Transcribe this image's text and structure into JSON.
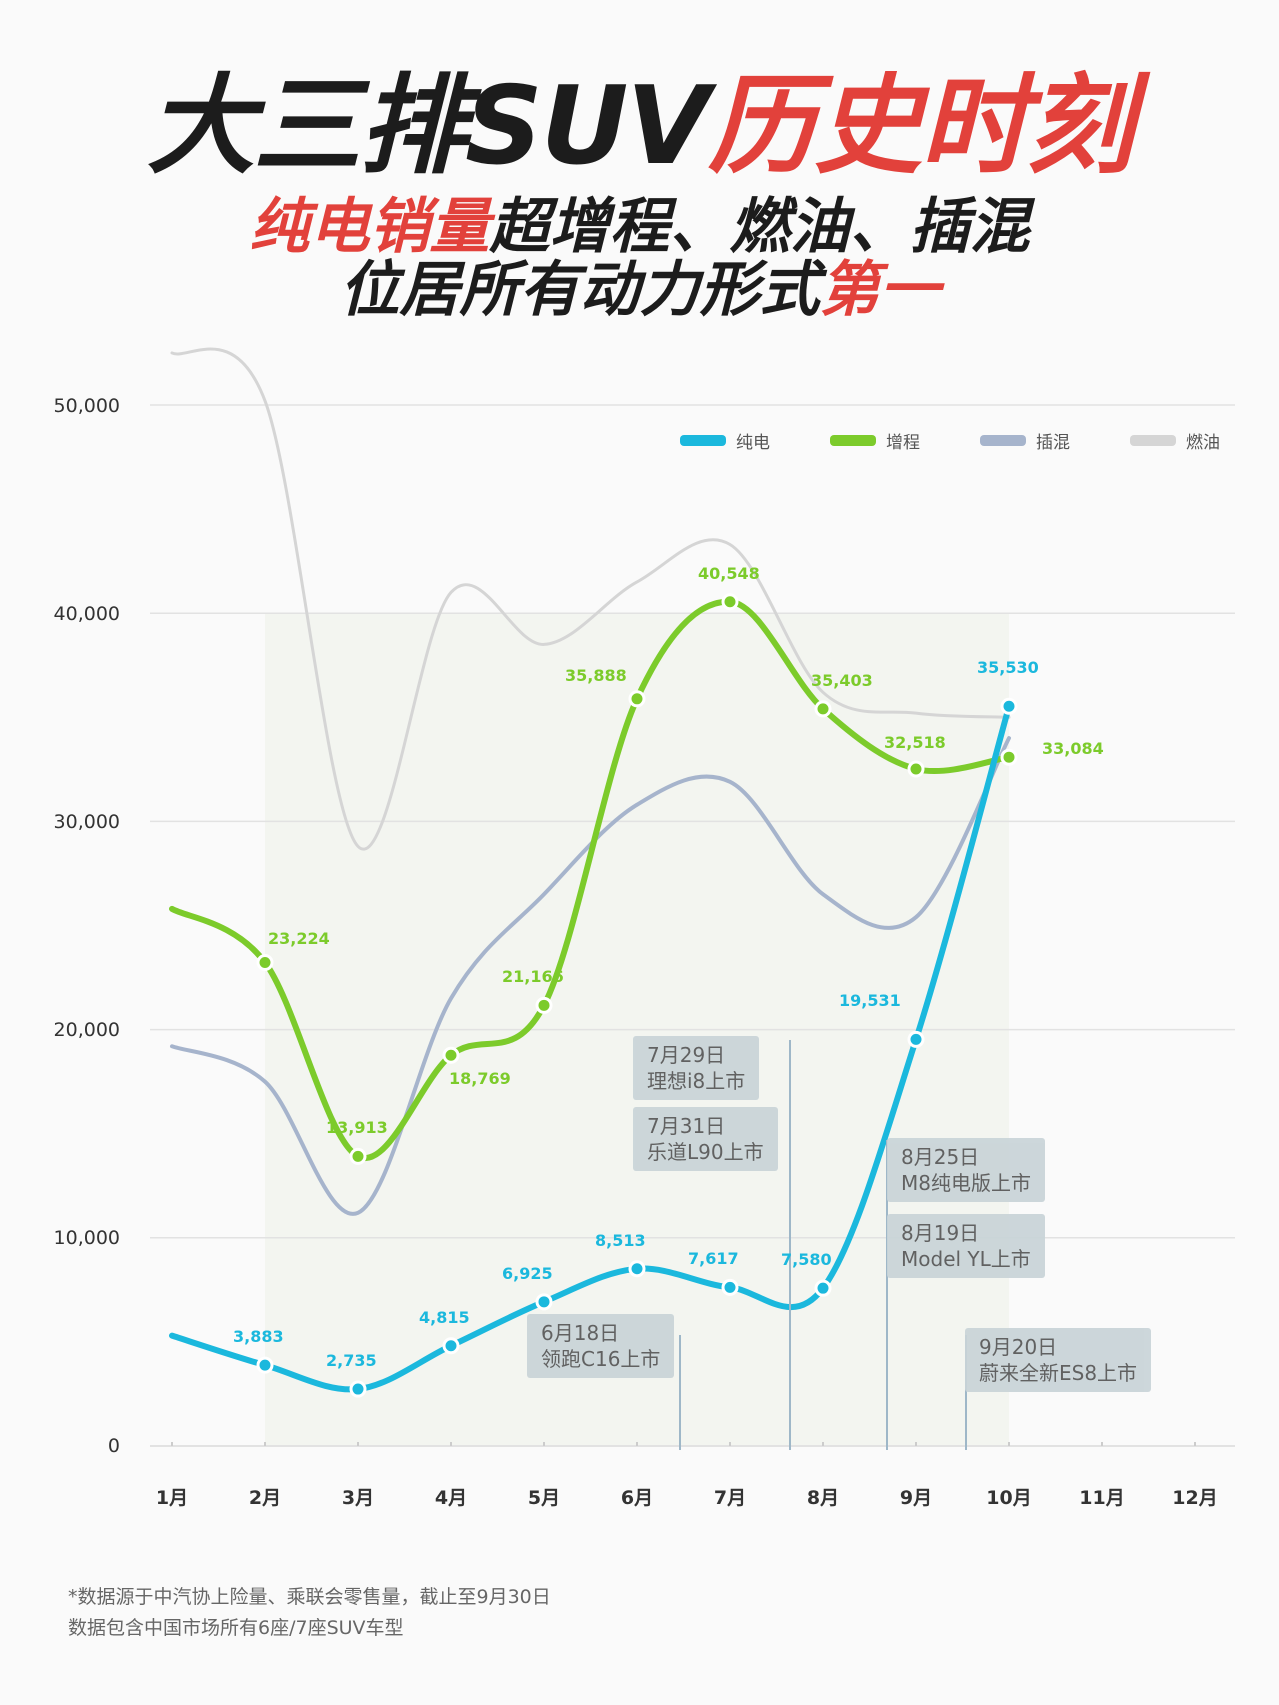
{
  "title": {
    "line1_black": "大三排SUV",
    "line1_red": "历史时刻",
    "line2_red": "纯电销量",
    "line2_black": "超增程、燃油、插混",
    "line3_black": "位居所有动力形式",
    "line3_red": "第一"
  },
  "legend": [
    {
      "label": "纯电",
      "color": "#1bb8dd"
    },
    {
      "label": "增程",
      "color": "#7ccb2b"
    },
    {
      "label": "插混",
      "color": "#a6b4cc"
    },
    {
      "label": "燃油",
      "color": "#d5d5d5"
    }
  ],
  "annotations": [
    {
      "date": "6月18日",
      "text": "领跑C16上市"
    },
    {
      "date": "7月29日",
      "text": "理想i8上市"
    },
    {
      "date": "7月31日",
      "text": "乐道L90上市"
    },
    {
      "date": "8月25日",
      "text": "M8纯电版上市"
    },
    {
      "date": "8月19日",
      "text": "Model YL上市"
    },
    {
      "date": "9月20日",
      "text": "蔚来全新ES8上市"
    }
  ],
  "footnote": {
    "line1": "*数据源于中汽协上险量、乘联会零售量，截止至9月30日",
    "line2": "数据包含中国市场所有6座/7座SUV车型"
  },
  "chart_data": {
    "type": "line",
    "title": "大三排SUV历史时刻",
    "subtitle": "纯电销量超增程、燃油、插混 位居所有动力形式第一",
    "xlabel": "",
    "ylabel": "",
    "categories": [
      "1月",
      "2月",
      "3月",
      "4月",
      "5月",
      "6月",
      "7月",
      "8月",
      "9月",
      "10月",
      "11月",
      "12月"
    ],
    "yticks": [
      "0",
      "10,000",
      "20,000",
      "30,000",
      "40,000",
      "50,000"
    ],
    "ylim": [
      0,
      50000
    ],
    "grid": true,
    "legend_position": "top-right",
    "series": [
      {
        "name": "纯电",
        "color": "#1bb8dd",
        "values": [
          5300,
          3883,
          2735,
          4815,
          6925,
          8513,
          7617,
          7580,
          19531,
          35530,
          null,
          null
        ],
        "labels": [
          "",
          "3,883",
          "2,735",
          "4,815",
          "6,925",
          "8,513",
          "7,617",
          "7,580",
          "19,531",
          "35,530",
          "",
          ""
        ]
      },
      {
        "name": "增程",
        "color": "#7ccb2b",
        "values": [
          25800,
          23224,
          13913,
          18769,
          21166,
          35888,
          40548,
          35403,
          32518,
          33084,
          null,
          null
        ],
        "labels": [
          "",
          "23,224",
          "13,913",
          "18,769",
          "21,166",
          "35,888",
          "40,548",
          "35,403",
          "32,518",
          "33,084",
          "",
          ""
        ]
      },
      {
        "name": "插混",
        "color": "#a6b4cc",
        "values": [
          19200,
          17500,
          11200,
          21500,
          26500,
          30800,
          31900,
          26500,
          25400,
          34000,
          null,
          null
        ]
      },
      {
        "name": "燃油",
        "color": "#d5d5d5",
        "values": [
          52500,
          50200,
          28800,
          41000,
          38500,
          41500,
          43300,
          36200,
          35200,
          35000,
          null,
          null
        ]
      }
    ]
  }
}
